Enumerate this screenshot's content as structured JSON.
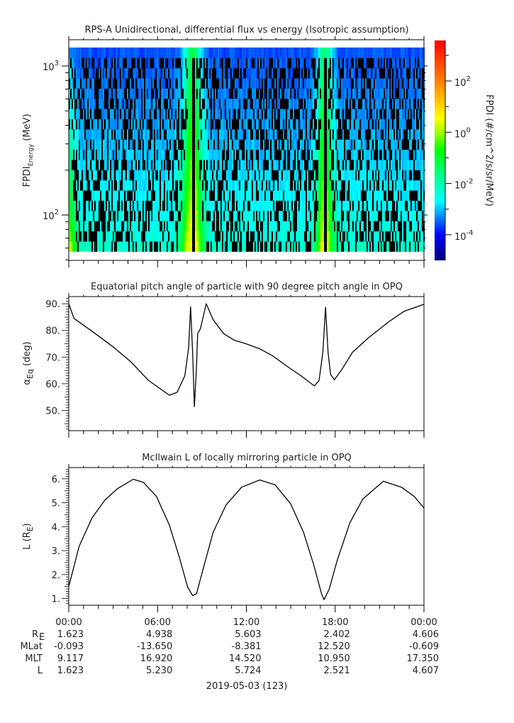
{
  "chart_data": {
    "type": "multi-panel",
    "xaxis": {
      "xlim_hours": [
        0,
        24
      ],
      "major_ticks_hours": [
        0,
        6,
        12,
        18,
        24
      ],
      "tick_labels": [
        "00:00",
        "06:00",
        "12:00",
        "18:00",
        "00:00"
      ],
      "minor_tick_step_hours": 1,
      "date_label": "2019-05-03 (123)"
    },
    "panels": [
      {
        "type": "heatmap",
        "title": "RPS-A Unidirectional, differential flux vs energy (Isotropic assumption)",
        "ylabel_main": "FPDI",
        "ylabel_sub": "Energy",
        "ylabel_unit": " (MeV)",
        "yscale": "log",
        "ylim": [
          49.6,
          1500
        ],
        "yticks": [
          {
            "value": 100,
            "base": "10",
            "exp": "2"
          },
          {
            "value": 1000,
            "base": "10",
            "exp": "3"
          }
        ],
        "energy_range_mev": [
          57,
          1330
        ],
        "n_energy_channels": 20,
        "flux_profile": {
          "time_hours": [
            0,
            0.3,
            0.8,
            7.0,
            7.6,
            8.0,
            8.3,
            8.6,
            8.9,
            9.5,
            16.3,
            16.8,
            17.1,
            17.5,
            17.8,
            18.3,
            24
          ],
          "log10_flux_lowest_energy": [
            0.5,
            -0.6,
            -2.2,
            -2.3,
            -1.2,
            0.3,
            0.7,
            0.6,
            -0.6,
            -2.2,
            -2.3,
            -0.9,
            0.4,
            0.4,
            -1.0,
            -2.2,
            -2.3
          ],
          "log10_flux_highest_energy": [
            -3.2,
            -3.4,
            -3.6,
            -3.6,
            -3.3,
            -2.0,
            -1.2,
            -1.5,
            -2.8,
            -3.6,
            -3.6,
            -3.0,
            -1.6,
            -1.8,
            -3.0,
            -3.6,
            -3.6
          ]
        },
        "fill_gaps_hours": [
          [
            8.35,
            8.55
          ],
          [
            17.2,
            17.45
          ]
        ],
        "colorbar": {
          "label": "FPDI (#/cm^2/s/sr/MeV)",
          "range_log10": [
            -5,
            3.58
          ],
          "ticks": [
            {
              "log10": 2,
              "base": "10",
              "exp": "2"
            },
            {
              "log10": 0,
              "base": "10",
              "exp": "0"
            },
            {
              "log10": -2,
              "base": "10",
              "exp": "-2"
            },
            {
              "log10": -4,
              "base": "10",
              "exp": "-4"
            }
          ],
          "minor_ticks_log10": [
            3,
            1,
            -1,
            -3
          ],
          "stops": [
            {
              "log10": -5,
              "color": "#00007f"
            },
            {
              "log10": -4,
              "color": "#0000ff"
            },
            {
              "log10": -2.7,
              "color": "#00ffff"
            },
            {
              "log10": -1.6,
              "color": "#00ff80"
            },
            {
              "log10": -0.7,
              "color": "#00ff00"
            },
            {
              "log10": 0,
              "color": "#a0ff00"
            },
            {
              "log10": 0.55,
              "color": "#ffff00"
            },
            {
              "log10": 2,
              "color": "#ff8000"
            },
            {
              "log10": 3.58,
              "color": "#ff0000"
            }
          ],
          "fill_color": "#000000"
        }
      },
      {
        "type": "line",
        "title": "Equatorial pitch angle of particle with 90 degree pitch angle in OPQ",
        "ylabel_main": "α",
        "ylabel_sub": "Eq",
        "ylabel_unit": " (deg)",
        "ylim": [
          42.4,
          92.7
        ],
        "yticks": [
          {
            "value": 50,
            "label": "50."
          },
          {
            "value": 60,
            "label": "60."
          },
          {
            "value": 70,
            "label": "70."
          },
          {
            "value": 80,
            "label": "80."
          },
          {
            "value": 90,
            "label": "90."
          }
        ],
        "minor_tick_step": 1,
        "x": [
          0,
          0.35,
          1.57,
          2.96,
          4.18,
          5.4,
          6.8,
          7.32,
          7.84,
          8.1,
          8.23,
          8.37,
          8.49,
          8.63,
          8.71,
          8.89,
          9.29,
          9.76,
          10.46,
          11.15,
          12.03,
          12.9,
          13.77,
          14.64,
          15.69,
          16.59,
          16.91,
          17.17,
          17.35,
          17.52,
          17.69,
          17.95,
          18.48,
          19.17,
          20.22,
          21.61,
          22.66,
          24
        ],
        "y": [
          90,
          84.5,
          79.7,
          74,
          68.3,
          61.2,
          55.7,
          56.8,
          63,
          73.6,
          88.9,
          71.9,
          51.4,
          66.6,
          78.8,
          80.6,
          90,
          84,
          78.8,
          76.4,
          74.9,
          73.1,
          70.5,
          67,
          63,
          59.2,
          61.2,
          71.8,
          88.7,
          71.8,
          63.5,
          61.5,
          65.6,
          71.8,
          77.1,
          83.2,
          87.2,
          89.8
        ]
      },
      {
        "type": "line",
        "title": "McIlwain L of locally mirroring particle in OPQ",
        "ylabel_main": "L (R",
        "ylabel_sub": "E",
        "ylabel_unit": ")",
        "ylim": [
          0.72,
          6.47
        ],
        "yticks": [
          {
            "value": 1,
            "label": "1."
          },
          {
            "value": 2,
            "label": "2."
          },
          {
            "value": 3,
            "label": "3."
          },
          {
            "value": 4,
            "label": "4."
          },
          {
            "value": 5,
            "label": "5."
          },
          {
            "value": 6,
            "label": "6."
          }
        ],
        "minor_tick_step": 0.1,
        "x": [
          0,
          0.7,
          1.57,
          2.44,
          3.31,
          4.36,
          5.05,
          5.93,
          6.8,
          7.49,
          8.02,
          8.37,
          8.63,
          9.06,
          9.76,
          10.63,
          11.68,
          12.9,
          13.94,
          14.99,
          15.86,
          16.56,
          17.08,
          17.25,
          17.6,
          18.13,
          19.0,
          19.87,
          21.26,
          22.48,
          23.35,
          24
        ],
        "y": [
          1.5,
          3.18,
          4.37,
          5.11,
          5.6,
          5.98,
          5.85,
          5.26,
          4.07,
          2.68,
          1.5,
          1.12,
          1.2,
          2.19,
          3.77,
          4.91,
          5.65,
          5.95,
          5.75,
          4.96,
          3.77,
          2.39,
          1.2,
          0.95,
          1.4,
          2.58,
          4.17,
          5.16,
          5.9,
          5.65,
          5.26,
          4.78
        ]
      }
    ]
  },
  "ephemeris": {
    "rows": [
      {
        "label": "R",
        "label_sub": "E",
        "values": [
          "1.623",
          "4.938",
          "5.603",
          "2.402",
          "4.606"
        ]
      },
      {
        "label": "MLat",
        "label_sub": "",
        "values": [
          "-0.093",
          "-13.650",
          "-8.381",
          "12.520",
          "-0.609"
        ]
      },
      {
        "label": "MLT",
        "label_sub": "",
        "values": [
          "9.117",
          "16.920",
          "14.520",
          "10.950",
          "17.350"
        ]
      },
      {
        "label": "L",
        "label_sub": "",
        "values": [
          "1.623",
          "5.230",
          "5.724",
          "2.521",
          "4.607"
        ]
      }
    ]
  }
}
